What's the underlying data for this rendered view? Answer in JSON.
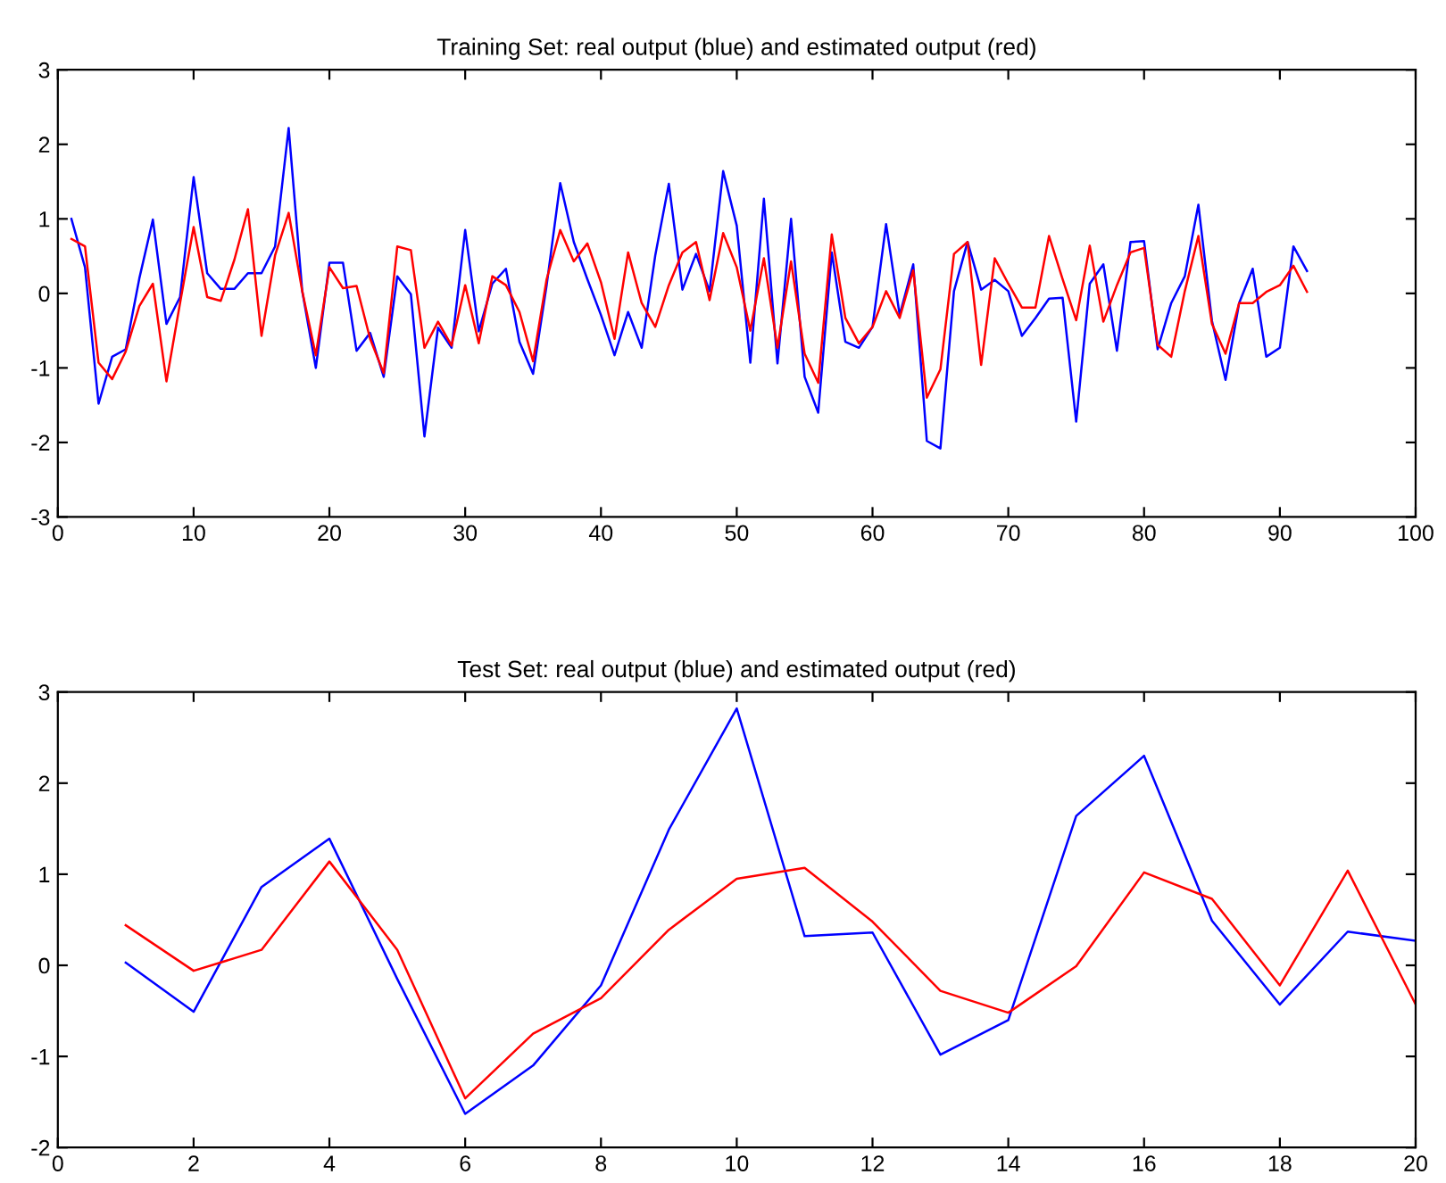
{
  "chart_data": [
    {
      "type": "line",
      "title": "Training Set: real output (blue) and estimated output (red)",
      "x": [
        1,
        2,
        3,
        4,
        5,
        6,
        7,
        8,
        9,
        10,
        11,
        12,
        13,
        14,
        15,
        16,
        17,
        18,
        19,
        20,
        21,
        22,
        23,
        24,
        25,
        26,
        27,
        28,
        29,
        30,
        31,
        32,
        33,
        34,
        35,
        36,
        37,
        38,
        39,
        40,
        41,
        42,
        43,
        44,
        45,
        46,
        47,
        48,
        49,
        50,
        51,
        52,
        53,
        54,
        55,
        56,
        57,
        58,
        59,
        60,
        61,
        62,
        63,
        64,
        65,
        66,
        67,
        68,
        69,
        70,
        71,
        72,
        73,
        74,
        75,
        76,
        77,
        78,
        79,
        80,
        81,
        82,
        83,
        84,
        85,
        86,
        87,
        88,
        89,
        90,
        91,
        92
      ],
      "series": [
        {
          "color": "#0000ff",
          "values": [
            1.0,
            0.35,
            -1.48,
            -0.85,
            -0.75,
            0.2,
            0.99,
            -0.41,
            -0.05,
            1.56,
            0.27,
            0.06,
            0.06,
            0.27,
            0.27,
            0.63,
            2.22,
            0.03,
            -1.0,
            0.41,
            0.41,
            -0.77,
            -0.53,
            -1.12,
            0.23,
            -0.01,
            -1.92,
            -0.46,
            -0.73,
            0.85,
            -0.51,
            0.13,
            0.33,
            -0.65,
            -1.08,
            0.11,
            1.48,
            0.69,
            0.19,
            -0.29,
            -0.83,
            -0.25,
            -0.73,
            0.51,
            1.47,
            0.05,
            0.53,
            0.03,
            1.64,
            0.91,
            -0.93,
            1.27,
            -0.94,
            1.0,
            -1.12,
            -1.6,
            0.55,
            -0.65,
            -0.73,
            -0.45,
            0.93,
            -0.29,
            0.39,
            -1.98,
            -2.08,
            0.03,
            0.69,
            0.05,
            0.18,
            0.03,
            -0.57,
            -0.33,
            -0.07,
            -0.06,
            -1.72,
            0.13,
            0.39,
            -0.77,
            0.69,
            0.7,
            -0.75,
            -0.13,
            0.23,
            1.19,
            -0.37,
            -1.16,
            -0.13,
            0.33,
            -0.85,
            -0.73,
            0.63,
            0.3
          ]
        },
        {
          "color": "#ff0000",
          "values": [
            0.73,
            0.63,
            -0.93,
            -1.15,
            -0.78,
            -0.17,
            0.13,
            -1.18,
            -0.13,
            0.89,
            -0.05,
            -0.1,
            0.45,
            1.13,
            -0.57,
            0.51,
            1.08,
            0.03,
            -0.83,
            0.35,
            0.07,
            0.1,
            -0.61,
            -1.07,
            0.63,
            0.58,
            -0.73,
            -0.38,
            -0.7,
            0.11,
            -0.67,
            0.23,
            0.11,
            -0.25,
            -0.91,
            0.19,
            0.85,
            0.43,
            0.67,
            0.15,
            -0.61,
            0.55,
            -0.13,
            -0.45,
            0.11,
            0.55,
            0.69,
            -0.09,
            0.81,
            0.35,
            -0.5,
            0.47,
            -0.73,
            0.43,
            -0.81,
            -1.2,
            0.79,
            -0.33,
            -0.67,
            -0.45,
            0.03,
            -0.33,
            0.31,
            -1.4,
            -1.02,
            0.53,
            0.69,
            -0.96,
            0.47,
            0.13,
            -0.19,
            -0.19,
            0.77,
            0.19,
            -0.36,
            0.64,
            -0.38,
            0.11,
            0.55,
            0.61,
            -0.69,
            -0.85,
            0.03,
            0.77,
            -0.41,
            -0.81,
            -0.13,
            -0.13,
            0.02,
            0.11,
            0.37,
            0.02
          ]
        }
      ],
      "xlim": [
        0,
        100
      ],
      "xticks": [
        0,
        10,
        20,
        30,
        40,
        50,
        60,
        70,
        80,
        90,
        100
      ],
      "ylim": [
        -3,
        3
      ],
      "yticks": [
        -3,
        -2,
        -1,
        0,
        1,
        2,
        3
      ],
      "grid": false,
      "legend": false
    },
    {
      "type": "line",
      "title": "Test Set: real output (blue) and estimated output (red)",
      "x": [
        1,
        2,
        3,
        4,
        5,
        6,
        7,
        8,
        9,
        10,
        11,
        12,
        13,
        14,
        15,
        16,
        17,
        18,
        19,
        20
      ],
      "series": [
        {
          "color": "#0000ff",
          "values": [
            0.03,
            -0.51,
            0.86,
            1.39,
            -0.15,
            -1.63,
            -1.1,
            -0.22,
            1.49,
            2.82,
            0.32,
            0.36,
            -0.98,
            -0.6,
            1.64,
            2.3,
            0.49,
            -0.43,
            0.37,
            0.27
          ]
        },
        {
          "color": "#ff0000",
          "values": [
            0.44,
            -0.06,
            0.17,
            1.14,
            0.17,
            -1.46,
            -0.75,
            -0.36,
            0.39,
            0.95,
            1.07,
            0.48,
            -0.28,
            -0.52,
            -0.01,
            1.02,
            0.73,
            -0.22,
            1.04,
            -0.43
          ]
        }
      ],
      "xlim": [
        0,
        20
      ],
      "xticks": [
        0,
        2,
        4,
        6,
        8,
        10,
        12,
        14,
        16,
        18,
        20
      ],
      "ylim": [
        -2,
        3
      ],
      "yticks": [
        -2,
        -1,
        0,
        1,
        2,
        3
      ],
      "grid": false,
      "legend": false
    }
  ]
}
